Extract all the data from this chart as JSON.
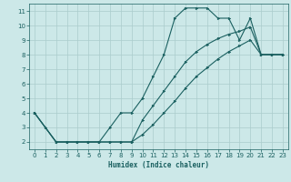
{
  "xlabel": "Humidex (Indice chaleur)",
  "xlim": [
    -0.5,
    23.5
  ],
  "ylim": [
    1.5,
    11.5
  ],
  "xticks": [
    0,
    1,
    2,
    3,
    4,
    5,
    6,
    7,
    8,
    9,
    10,
    11,
    12,
    13,
    14,
    15,
    16,
    17,
    18,
    19,
    20,
    21,
    22,
    23
  ],
  "yticks": [
    2,
    3,
    4,
    5,
    6,
    7,
    8,
    9,
    10,
    11
  ],
  "bg_color": "#cce8e8",
  "grid_color": "#aacccc",
  "line_color": "#1a6060",
  "line1_x": [
    0,
    1,
    2,
    3,
    4,
    5,
    6,
    7,
    8,
    9,
    10,
    11,
    12,
    13,
    14,
    15,
    16,
    17,
    18,
    19,
    20,
    21,
    22,
    23
  ],
  "line1_y": [
    4.0,
    3.0,
    2.0,
    2.0,
    2.0,
    2.0,
    2.0,
    3.0,
    4.0,
    4.0,
    5.0,
    6.5,
    8.0,
    10.5,
    11.2,
    11.2,
    11.2,
    10.5,
    10.5,
    9.0,
    10.5,
    8.0,
    8.0,
    8.0
  ],
  "line2_x": [
    0,
    2,
    3,
    4,
    5,
    6,
    7,
    8,
    9,
    10,
    11,
    12,
    13,
    14,
    15,
    16,
    17,
    18,
    19,
    20,
    21,
    22,
    23
  ],
  "line2_y": [
    4.0,
    2.0,
    2.0,
    2.0,
    2.0,
    2.0,
    2.0,
    2.0,
    2.0,
    3.5,
    4.5,
    5.5,
    6.5,
    7.5,
    8.2,
    8.7,
    9.1,
    9.4,
    9.6,
    9.9,
    8.0,
    8.0,
    8.0
  ],
  "line3_x": [
    0,
    2,
    3,
    4,
    5,
    6,
    7,
    8,
    9,
    10,
    11,
    12,
    13,
    14,
    15,
    16,
    17,
    18,
    19,
    20,
    21,
    22,
    23
  ],
  "line3_y": [
    4.0,
    2.0,
    2.0,
    2.0,
    2.0,
    2.0,
    2.0,
    2.0,
    2.0,
    2.5,
    3.2,
    4.0,
    4.8,
    5.7,
    6.5,
    7.1,
    7.7,
    8.2,
    8.6,
    9.0,
    8.0,
    8.0,
    8.0
  ]
}
